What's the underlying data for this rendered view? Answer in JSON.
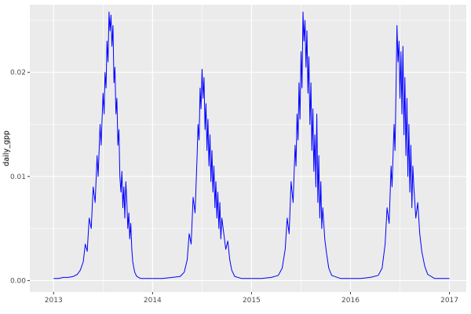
{
  "figure": {
    "background": "#FFFFFF",
    "panel_background": "#EBEBEB",
    "grid_color": "#FFFFFF",
    "line_color": "#0000FF",
    "tick_mark_color": "#333333",
    "tick_label_color": "#4D4D4D",
    "axis_title_color": "#000000"
  },
  "chart_data": {
    "type": "line",
    "title": "",
    "xlabel": "",
    "ylabel": "daily_gpp",
    "legend_position": "none",
    "grid": true,
    "xlim": [
      2012.76,
      2017.17
    ],
    "ylim": [
      -0.0011,
      0.0265
    ],
    "x_ticks": [
      2013,
      2014,
      2015,
      2016,
      2017
    ],
    "x_tick_labels": [
      "2013",
      "2014",
      "2015",
      "2016",
      "2017"
    ],
    "x_minor_ticks": [
      2013.5,
      2014.5,
      2015.5,
      2016.5
    ],
    "y_ticks": [
      0.0,
      0.01,
      0.02
    ],
    "y_tick_labels": [
      "0.00",
      "0.01",
      "0.02"
    ],
    "y_minor_ticks": [
      0.005,
      0.015,
      0.025
    ],
    "series": [
      {
        "name": "daily_gpp",
        "points": [
          [
            2013.0,
            0.0002
          ],
          [
            2013.05,
            0.0002
          ],
          [
            2013.1,
            0.0003
          ],
          [
            2013.15,
            0.0003
          ],
          [
            2013.2,
            0.0004
          ],
          [
            2013.24,
            0.0006
          ],
          [
            2013.27,
            0.001
          ],
          [
            2013.3,
            0.0018
          ],
          [
            2013.32,
            0.0035
          ],
          [
            2013.34,
            0.0028
          ],
          [
            2013.36,
            0.006
          ],
          [
            2013.38,
            0.005
          ],
          [
            2013.4,
            0.009
          ],
          [
            2013.42,
            0.0075
          ],
          [
            2013.44,
            0.012
          ],
          [
            2013.45,
            0.01
          ],
          [
            2013.47,
            0.015
          ],
          [
            2013.48,
            0.013
          ],
          [
            2013.5,
            0.018
          ],
          [
            2013.51,
            0.016
          ],
          [
            2013.52,
            0.02
          ],
          [
            2013.53,
            0.0185
          ],
          [
            2013.54,
            0.023
          ],
          [
            2013.55,
            0.021
          ],
          [
            2013.56,
            0.0258
          ],
          [
            2013.57,
            0.024
          ],
          [
            2013.58,
            0.0255
          ],
          [
            2013.59,
            0.0225
          ],
          [
            2013.6,
            0.0245
          ],
          [
            2013.61,
            0.019
          ],
          [
            2013.62,
            0.0205
          ],
          [
            2013.63,
            0.016
          ],
          [
            2013.64,
            0.0175
          ],
          [
            2013.65,
            0.013
          ],
          [
            2013.66,
            0.0145
          ],
          [
            2013.67,
            0.01
          ],
          [
            2013.68,
            0.0085
          ],
          [
            2013.69,
            0.0105
          ],
          [
            2013.7,
            0.007
          ],
          [
            2013.71,
            0.009
          ],
          [
            2013.72,
            0.006
          ],
          [
            2013.73,
            0.0095
          ],
          [
            2013.74,
            0.0075
          ],
          [
            2013.75,
            0.005
          ],
          [
            2013.76,
            0.0065
          ],
          [
            2013.77,
            0.004
          ],
          [
            2013.78,
            0.0055
          ],
          [
            2013.79,
            0.003
          ],
          [
            2013.8,
            0.0018
          ],
          [
            2013.82,
            0.0008
          ],
          [
            2013.84,
            0.0004
          ],
          [
            2013.88,
            0.0002
          ],
          [
            2013.95,
            0.0002
          ],
          [
            2014.0,
            0.0002
          ],
          [
            2014.1,
            0.0002
          ],
          [
            2014.2,
            0.0003
          ],
          [
            2014.28,
            0.0004
          ],
          [
            2014.32,
            0.0008
          ],
          [
            2014.35,
            0.002
          ],
          [
            2014.37,
            0.0045
          ],
          [
            2014.39,
            0.0035
          ],
          [
            2014.41,
            0.008
          ],
          [
            2014.43,
            0.0065
          ],
          [
            2014.45,
            0.012
          ],
          [
            2014.46,
            0.015
          ],
          [
            2014.47,
            0.0135
          ],
          [
            2014.48,
            0.0185
          ],
          [
            2014.49,
            0.0165
          ],
          [
            2014.5,
            0.0203
          ],
          [
            2014.51,
            0.0175
          ],
          [
            2014.52,
            0.0195
          ],
          [
            2014.53,
            0.0145
          ],
          [
            2014.54,
            0.017
          ],
          [
            2014.55,
            0.0125
          ],
          [
            2014.56,
            0.0155
          ],
          [
            2014.57,
            0.011
          ],
          [
            2014.58,
            0.014
          ],
          [
            2014.59,
            0.0095
          ],
          [
            2014.6,
            0.0125
          ],
          [
            2014.61,
            0.0085
          ],
          [
            2014.62,
            0.011
          ],
          [
            2014.63,
            0.007
          ],
          [
            2014.64,
            0.0095
          ],
          [
            2014.65,
            0.006
          ],
          [
            2014.66,
            0.0085
          ],
          [
            2014.67,
            0.005
          ],
          [
            2014.68,
            0.0075
          ],
          [
            2014.69,
            0.004
          ],
          [
            2014.7,
            0.006
          ],
          [
            2014.72,
            0.0045
          ],
          [
            2014.74,
            0.003
          ],
          [
            2014.76,
            0.0038
          ],
          [
            2014.78,
            0.002
          ],
          [
            2014.8,
            0.001
          ],
          [
            2014.83,
            0.0004
          ],
          [
            2014.9,
            0.0002
          ],
          [
            2015.0,
            0.0002
          ],
          [
            2015.1,
            0.0002
          ],
          [
            2015.2,
            0.0003
          ],
          [
            2015.27,
            0.0005
          ],
          [
            2015.31,
            0.0012
          ],
          [
            2015.34,
            0.003
          ],
          [
            2015.36,
            0.006
          ],
          [
            2015.38,
            0.0045
          ],
          [
            2015.4,
            0.0095
          ],
          [
            2015.42,
            0.0075
          ],
          [
            2015.44,
            0.013
          ],
          [
            2015.45,
            0.011
          ],
          [
            2015.46,
            0.016
          ],
          [
            2015.47,
            0.0135
          ],
          [
            2015.48,
            0.019
          ],
          [
            2015.49,
            0.0155
          ],
          [
            2015.5,
            0.022
          ],
          [
            2015.51,
            0.0185
          ],
          [
            2015.52,
            0.0258
          ],
          [
            2015.53,
            0.023
          ],
          [
            2015.54,
            0.025
          ],
          [
            2015.55,
            0.0205
          ],
          [
            2015.56,
            0.024
          ],
          [
            2015.57,
            0.018
          ],
          [
            2015.58,
            0.0215
          ],
          [
            2015.59,
            0.015
          ],
          [
            2015.6,
            0.019
          ],
          [
            2015.61,
            0.0125
          ],
          [
            2015.62,
            0.0165
          ],
          [
            2015.63,
            0.0105
          ],
          [
            2015.64,
            0.014
          ],
          [
            2015.65,
            0.009
          ],
          [
            2015.66,
            0.016
          ],
          [
            2015.67,
            0.0075
          ],
          [
            2015.68,
            0.012
          ],
          [
            2015.69,
            0.006
          ],
          [
            2015.7,
            0.0095
          ],
          [
            2015.71,
            0.005
          ],
          [
            2015.72,
            0.007
          ],
          [
            2015.74,
            0.004
          ],
          [
            2015.76,
            0.0025
          ],
          [
            2015.78,
            0.0012
          ],
          [
            2015.81,
            0.0005
          ],
          [
            2015.9,
            0.0002
          ],
          [
            2016.0,
            0.0002
          ],
          [
            2016.1,
            0.0002
          ],
          [
            2016.2,
            0.0003
          ],
          [
            2016.28,
            0.0005
          ],
          [
            2016.32,
            0.0012
          ],
          [
            2016.35,
            0.0035
          ],
          [
            2016.37,
            0.007
          ],
          [
            2016.39,
            0.0055
          ],
          [
            2016.41,
            0.011
          ],
          [
            2016.42,
            0.009
          ],
          [
            2016.44,
            0.015
          ],
          [
            2016.45,
            0.0125
          ],
          [
            2016.46,
            0.0185
          ],
          [
            2016.47,
            0.0245
          ],
          [
            2016.48,
            0.021
          ],
          [
            2016.49,
            0.023
          ],
          [
            2016.5,
            0.0175
          ],
          [
            2016.51,
            0.022
          ],
          [
            2016.52,
            0.016
          ],
          [
            2016.53,
            0.0225
          ],
          [
            2016.54,
            0.014
          ],
          [
            2016.55,
            0.0195
          ],
          [
            2016.56,
            0.012
          ],
          [
            2016.57,
            0.0175
          ],
          [
            2016.58,
            0.01
          ],
          [
            2016.59,
            0.015
          ],
          [
            2016.6,
            0.0085
          ],
          [
            2016.61,
            0.013
          ],
          [
            2016.62,
            0.007
          ],
          [
            2016.63,
            0.011
          ],
          [
            2016.64,
            0.009
          ],
          [
            2016.66,
            0.006
          ],
          [
            2016.68,
            0.0075
          ],
          [
            2016.7,
            0.0045
          ],
          [
            2016.72,
            0.0028
          ],
          [
            2016.75,
            0.0014
          ],
          [
            2016.78,
            0.0006
          ],
          [
            2016.85,
            0.0002
          ],
          [
            2016.95,
            0.0002
          ],
          [
            2017.0,
            0.0002
          ]
        ]
      }
    ]
  }
}
